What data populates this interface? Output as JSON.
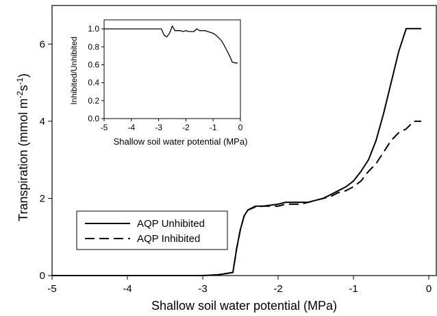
{
  "chart_data": [
    {
      "type": "line",
      "xlabel": "Shallow soil water potential (MPa)",
      "ylabel_parts": [
        "Transpiration (mmol m",
        "-2",
        "s",
        "-1",
        ")"
      ],
      "xlim": [
        -5,
        0.1
      ],
      "ylim": [
        0,
        7.0
      ],
      "xticks": [
        -5,
        -4,
        -3,
        -2,
        -1,
        0
      ],
      "yticks": [
        0,
        2,
        4,
        6
      ],
      "grid": false,
      "legend": {
        "position": "lower-left",
        "entries": [
          "AQP Unhibited",
          "AQP Inhibited"
        ]
      },
      "series": [
        {
          "name": "AQP Unhibited",
          "style": "solid",
          "x": [
            -5,
            -4,
            -3,
            -2.8,
            -2.7,
            -2.6,
            -2.55,
            -2.5,
            -2.45,
            -2.4,
            -2.3,
            -2.2,
            -2.0,
            -1.9,
            -1.8,
            -1.7,
            -1.6,
            -1.5,
            -1.4,
            -1.3,
            -1.2,
            -1.1,
            -1.0,
            -0.9,
            -0.8,
            -0.7,
            -0.6,
            -0.5,
            -0.4,
            -0.3,
            -0.2,
            -0.1
          ],
          "y": [
            0,
            0,
            0,
            0.02,
            0.05,
            0.08,
            0.7,
            1.2,
            1.55,
            1.7,
            1.8,
            1.8,
            1.85,
            1.9,
            1.9,
            1.9,
            1.9,
            1.95,
            2.0,
            2.1,
            2.2,
            2.3,
            2.45,
            2.7,
            3.0,
            3.5,
            4.2,
            5.0,
            5.8,
            6.4,
            6.4,
            6.4
          ]
        },
        {
          "name": "AQP Inhibited",
          "style": "dashed",
          "x": [
            -5,
            -4,
            -3,
            -2.8,
            -2.7,
            -2.6,
            -2.55,
            -2.5,
            -2.45,
            -2.4,
            -2.3,
            -2.2,
            -2.0,
            -1.9,
            -1.8,
            -1.7,
            -1.6,
            -1.5,
            -1.4,
            -1.3,
            -1.2,
            -1.1,
            -1.0,
            -0.9,
            -0.8,
            -0.7,
            -0.6,
            -0.5,
            -0.4,
            -0.3,
            -0.2,
            -0.1
          ],
          "y": [
            0,
            0,
            0,
            0.02,
            0.05,
            0.08,
            0.7,
            1.2,
            1.55,
            1.7,
            1.78,
            1.8,
            1.8,
            1.85,
            1.85,
            1.85,
            1.9,
            1.95,
            2.0,
            2.05,
            2.15,
            2.2,
            2.3,
            2.45,
            2.7,
            2.9,
            3.2,
            3.5,
            3.7,
            3.8,
            4.0,
            4.0
          ]
        }
      ]
    },
    {
      "type": "line",
      "xlabel": "Shallow soil water potential (MPa)",
      "ylabel": "Inhibited/Unhibited",
      "xlim": [
        -5,
        0
      ],
      "ylim": [
        0,
        1.1
      ],
      "xticks": [
        -5,
        -4,
        -3,
        -2,
        -1,
        0
      ],
      "yticks": [
        0.0,
        0.2,
        0.4,
        0.6,
        0.8,
        1.0
      ],
      "ytick_labels": [
        "0.0",
        "0.2",
        "0.4",
        "0.6",
        "0.8",
        "1.0"
      ],
      "grid": false,
      "series": [
        {
          "style": "solid",
          "x": [
            -5,
            -4,
            -3,
            -2.9,
            -2.8,
            -2.7,
            -2.6,
            -2.5,
            -2.4,
            -2.3,
            -2.2,
            -2.1,
            -2.0,
            -1.9,
            -1.8,
            -1.7,
            -1.6,
            -1.5,
            -1.4,
            -1.3,
            -1.2,
            -1.1,
            -1.0,
            -0.9,
            -0.8,
            -0.7,
            -0.6,
            -0.5,
            -0.4,
            -0.3,
            -0.2,
            -0.1
          ],
          "y": [
            1.0,
            1.0,
            1.0,
            1.0,
            0.93,
            0.91,
            0.95,
            1.03,
            0.98,
            0.98,
            0.98,
            0.97,
            0.98,
            0.97,
            0.97,
            0.97,
            1.0,
            0.98,
            0.98,
            0.98,
            0.97,
            0.96,
            0.95,
            0.93,
            0.9,
            0.87,
            0.82,
            0.76,
            0.7,
            0.63,
            0.62,
            0.62
          ]
        }
      ]
    }
  ]
}
